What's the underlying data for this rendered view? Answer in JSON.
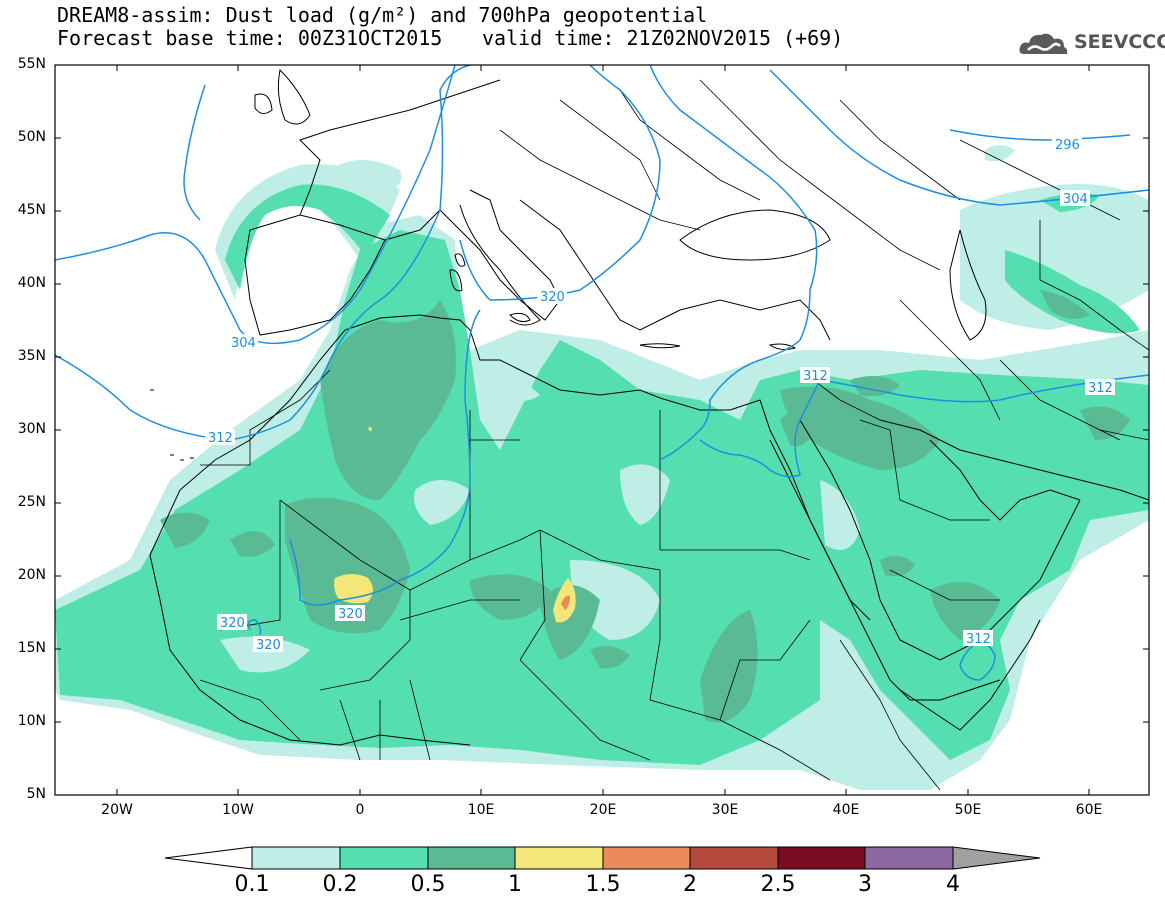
{
  "title": {
    "line1": "DREAM8-assim: Dust load (g/m²) and 700hPa geopotential",
    "line2": "Forecast base time: 00Z31OCT2015",
    "valid": "valid time: 21Z02NOV2015 (+69)"
  },
  "logo": {
    "text": "SEEVCCC",
    "icon": "cloud-logo-icon"
  },
  "axes": {
    "lat_labels": [
      "55N",
      "50N",
      "45N",
      "40N",
      "35N",
      "30N",
      "25N",
      "20N",
      "15N",
      "10N",
      "5N"
    ],
    "lon_labels": [
      "20W",
      "10W",
      "0",
      "10E",
      "20E",
      "30E",
      "40E",
      "50E",
      "60E"
    ]
  },
  "contours": {
    "labels": [
      "296",
      "304",
      "304",
      "312",
      "312",
      "312",
      "312",
      "320",
      "320",
      "320",
      "320"
    ]
  },
  "colorbar": {
    "labels": [
      "0.1",
      "0.2",
      "0.5",
      "1",
      "1.5",
      "2",
      "2.5",
      "3",
      "4"
    ],
    "colors": [
      "#ffffff",
      "#bfeee6",
      "#55dfb0",
      "#5aba93",
      "#f5e67a",
      "#ea8a5d",
      "#b44a3e",
      "#7a0d24",
      "#8a6aa0",
      "#a0a0a0"
    ]
  },
  "colors": {
    "contour_line": "#1e8fe0",
    "coast": "#000000",
    "light": "#bfeee6",
    "medium": "#55dfb0",
    "dark": "#5aba93",
    "yellow": "#f5e67a",
    "orange": "#ea8a5d",
    "red": "#c45a4a"
  }
}
